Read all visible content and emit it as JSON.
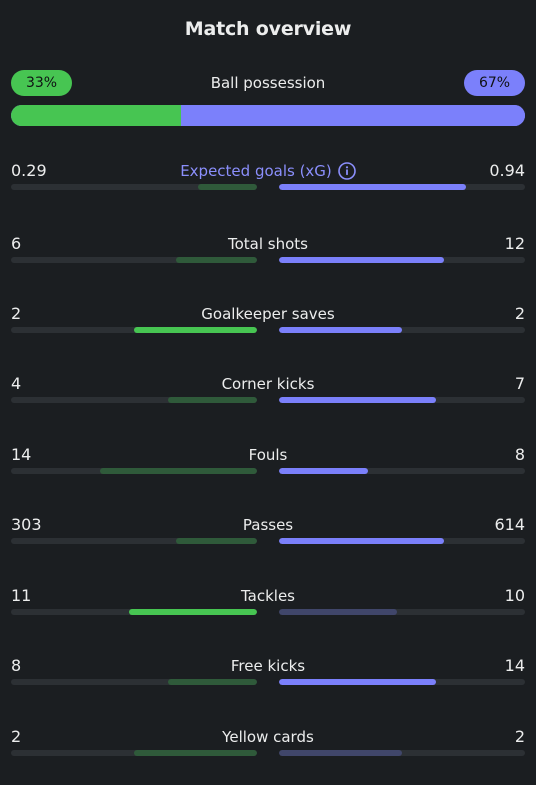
{
  "title": "Match overview",
  "possession": {
    "label": "Ball possession",
    "home": "33%",
    "away": "67%",
    "home_fraction": 0.33
  },
  "stats": [
    {
      "label": "Expected goals (xG)",
      "home": "0.29",
      "away": "0.94",
      "info": true,
      "accent": true
    },
    {
      "label": "Total shots",
      "home": "6",
      "away": "12"
    },
    {
      "label": "Goalkeeper saves",
      "home": "2",
      "away": "2"
    },
    {
      "label": "Corner kicks",
      "home": "4",
      "away": "7"
    },
    {
      "label": "Fouls",
      "home": "14",
      "away": "8"
    },
    {
      "label": "Passes",
      "home": "303",
      "away": "614"
    },
    {
      "label": "Tackles",
      "home": "11",
      "away": "10"
    },
    {
      "label": "Free kicks",
      "home": "8",
      "away": "14"
    },
    {
      "label": "Yellow cards",
      "home": "2",
      "away": "2"
    }
  ],
  "bars": [
    {
      "home_level": 0.24,
      "home_style": "lose",
      "away_level": 0.76,
      "away_style": "win"
    },
    {
      "home_level": 0.33,
      "home_style": "lose",
      "away_level": 0.67,
      "away_style": "win"
    },
    {
      "home_level": 0.5,
      "home_style": "win",
      "away_level": 0.5,
      "away_style": "win"
    },
    {
      "home_level": 0.36,
      "home_style": "lose",
      "away_level": 0.64,
      "away_style": "win"
    },
    {
      "home_level": 0.64,
      "home_style": "lose",
      "away_level": 0.36,
      "away_style": "win"
    },
    {
      "home_level": 0.33,
      "home_style": "lose",
      "away_level": 0.67,
      "away_style": "win"
    },
    {
      "home_level": 0.52,
      "home_style": "win",
      "away_level": 0.48,
      "away_style": "lose"
    },
    {
      "home_level": 0.36,
      "home_style": "lose",
      "away_level": 0.64,
      "away_style": "win"
    },
    {
      "home_level": 0.5,
      "home_style": "lose",
      "away_level": 0.5,
      "away_style": "lose"
    }
  ],
  "colors": {
    "home": "#47c552",
    "away": "#7b80fb",
    "background": "#1b1e21"
  }
}
